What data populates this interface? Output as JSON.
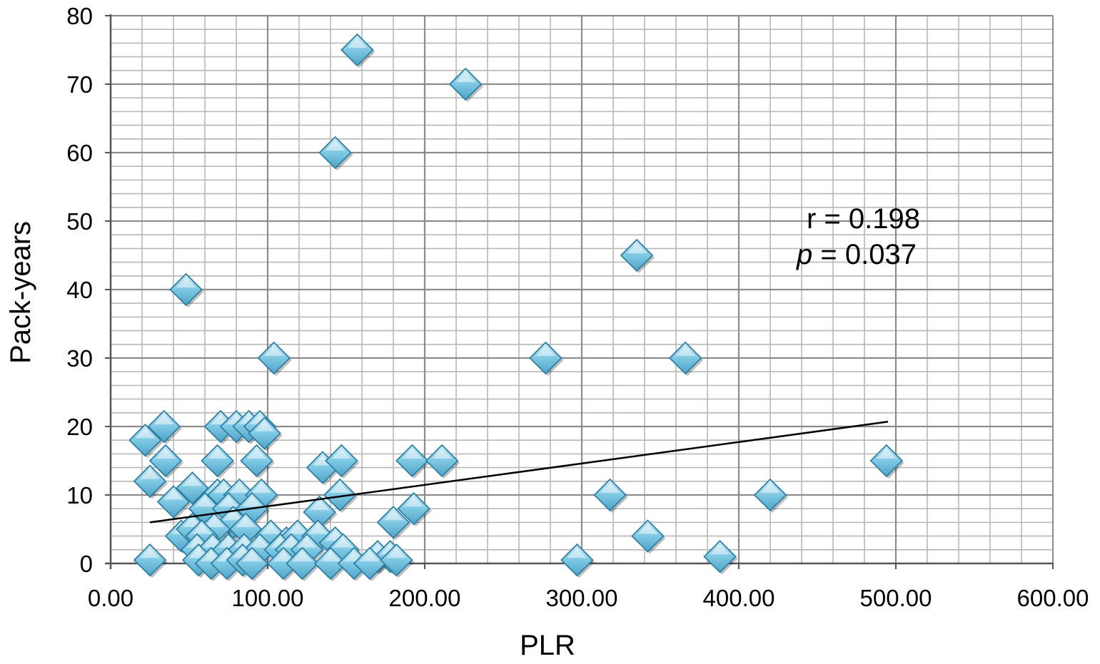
{
  "chart_data": {
    "type": "scatter",
    "xlabel": "PLR",
    "ylabel": "Pack-years",
    "xlim": [
      0,
      600
    ],
    "ylim": [
      0,
      80
    ],
    "x_ticks": [
      "0.00",
      "100.00",
      "200.00",
      "300.00",
      "400.00",
      "500.00",
      "600.00"
    ],
    "y_ticks": [
      "0",
      "10",
      "20",
      "30",
      "40",
      "50",
      "60",
      "70",
      "80"
    ],
    "grid": true,
    "annotation": {
      "r_text": "r = 0.198",
      "p_symbol": "p",
      "p_text": " = 0.037"
    },
    "trendline": {
      "x": [
        25,
        495
      ],
      "y": [
        6,
        20.7
      ]
    },
    "marker_color": "#7ec8e3",
    "points": [
      [
        157,
        75
      ],
      [
        226,
        70
      ],
      [
        143,
        60
      ],
      [
        48,
        40
      ],
      [
        335,
        45
      ],
      [
        104,
        30
      ],
      [
        277,
        30
      ],
      [
        366,
        30
      ],
      [
        22,
        18
      ],
      [
        34,
        20
      ],
      [
        70,
        20
      ],
      [
        80,
        20
      ],
      [
        88,
        20
      ],
      [
        95,
        20
      ],
      [
        98,
        19
      ],
      [
        35,
        15
      ],
      [
        68,
        15
      ],
      [
        93,
        15
      ],
      [
        135,
        14
      ],
      [
        147,
        15
      ],
      [
        192,
        15
      ],
      [
        211,
        15
      ],
      [
        494,
        15
      ],
      [
        25,
        12
      ],
      [
        52,
        11
      ],
      [
        40,
        9
      ],
      [
        68,
        10
      ],
      [
        72,
        10
      ],
      [
        82,
        10
      ],
      [
        96,
        10
      ],
      [
        146,
        10
      ],
      [
        318,
        10
      ],
      [
        420,
        10
      ],
      [
        60,
        8
      ],
      [
        75,
        8
      ],
      [
        90,
        8
      ],
      [
        133,
        7.5
      ],
      [
        180,
        6
      ],
      [
        193,
        8
      ],
      [
        78,
        6
      ],
      [
        66,
        5
      ],
      [
        45,
        4
      ],
      [
        52,
        5
      ],
      [
        58,
        4
      ],
      [
        86,
        5
      ],
      [
        102,
        4
      ],
      [
        112,
        3
      ],
      [
        119,
        4
      ],
      [
        132,
        4
      ],
      [
        143,
        3
      ],
      [
        342,
        4
      ],
      [
        55,
        2
      ],
      [
        65,
        2
      ],
      [
        75,
        2
      ],
      [
        85,
        2
      ],
      [
        95,
        2
      ],
      [
        108,
        2
      ],
      [
        115,
        2
      ],
      [
        125,
        2
      ],
      [
        148,
        2
      ],
      [
        170,
        1
      ],
      [
        178,
        1
      ],
      [
        25,
        0.5
      ],
      [
        56,
        0.5
      ],
      [
        64,
        0
      ],
      [
        74,
        0
      ],
      [
        84,
        0.5
      ],
      [
        90,
        0
      ],
      [
        110,
        0
      ],
      [
        122,
        0
      ],
      [
        140,
        0
      ],
      [
        155,
        0
      ],
      [
        165,
        0
      ],
      [
        182,
        0.5
      ],
      [
        297,
        0.5
      ],
      [
        388,
        1
      ]
    ]
  }
}
